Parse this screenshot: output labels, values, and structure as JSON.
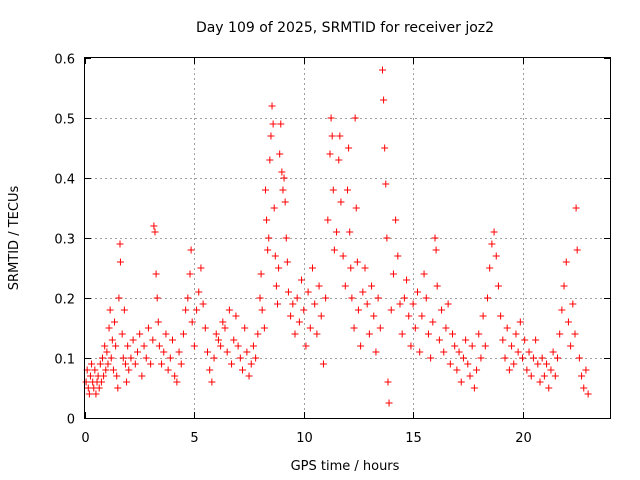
{
  "chart_data": {
    "type": "scatter",
    "title": "Day 109 of 2025, SRMTID for receiver joz2",
    "xlabel": "GPS time / hours",
    "ylabel": "SRMTID / TECUs",
    "xlim": [
      0,
      24
    ],
    "ylim": [
      0,
      0.6
    ],
    "xticks": [
      0,
      5,
      10,
      15,
      20
    ],
    "yticks": [
      0,
      0.1,
      0.2,
      0.3,
      0.4,
      0.5,
      0.6
    ],
    "xtick_labels": [
      "0",
      "5",
      "10",
      "15",
      "20"
    ],
    "ytick_labels": [
      "0",
      "0.1",
      "0.2",
      "0.3",
      "0.4",
      "0.5",
      "0.6"
    ],
    "grid": true,
    "marker": "+",
    "color": "#ff0000",
    "series": [
      {
        "name": "SRMTID",
        "points": [
          [
            0.05,
            0.06
          ],
          [
            0.1,
            0.08
          ],
          [
            0.15,
            0.05
          ],
          [
            0.2,
            0.04
          ],
          [
            0.25,
            0.07
          ],
          [
            0.3,
            0.09
          ],
          [
            0.35,
            0.06
          ],
          [
            0.4,
            0.05
          ],
          [
            0.45,
            0.08
          ],
          [
            0.5,
            0.04
          ],
          [
            0.55,
            0.06
          ],
          [
            0.6,
            0.07
          ],
          [
            0.65,
            0.05
          ],
          [
            0.7,
            0.09
          ],
          [
            0.75,
            0.06
          ],
          [
            0.8,
            0.1
          ],
          [
            0.85,
            0.07
          ],
          [
            0.9,
            0.12
          ],
          [
            0.95,
            0.08
          ],
          [
            1.0,
            0.11
          ],
          [
            1.05,
            0.09
          ],
          [
            1.1,
            0.15
          ],
          [
            1.15,
            0.18
          ],
          [
            1.2,
            0.1
          ],
          [
            1.25,
            0.13
          ],
          [
            1.3,
            0.08
          ],
          [
            1.35,
            0.16
          ],
          [
            1.4,
            0.12
          ],
          [
            1.45,
            0.07
          ],
          [
            1.5,
            0.05
          ],
          [
            1.55,
            0.2
          ],
          [
            1.6,
            0.29
          ],
          [
            1.62,
            0.26
          ],
          [
            1.7,
            0.14
          ],
          [
            1.75,
            0.1
          ],
          [
            1.8,
            0.18
          ],
          [
            1.85,
            0.09
          ],
          [
            1.9,
            0.06
          ],
          [
            1.95,
            0.12
          ],
          [
            2.0,
            0.08
          ],
          [
            2.1,
            0.1
          ],
          [
            2.2,
            0.13
          ],
          [
            2.3,
            0.09
          ],
          [
            2.4,
            0.11
          ],
          [
            2.5,
            0.14
          ],
          [
            2.6,
            0.07
          ],
          [
            2.7,
            0.12
          ],
          [
            2.8,
            0.1
          ],
          [
            2.9,
            0.15
          ],
          [
            3.0,
            0.09
          ],
          [
            3.1,
            0.13
          ],
          [
            3.15,
            0.32
          ],
          [
            3.2,
            0.31
          ],
          [
            3.25,
            0.24
          ],
          [
            3.3,
            0.2
          ],
          [
            3.35,
            0.16
          ],
          [
            3.4,
            0.12
          ],
          [
            3.5,
            0.09
          ],
          [
            3.6,
            0.11
          ],
          [
            3.7,
            0.14
          ],
          [
            3.8,
            0.08
          ],
          [
            3.9,
            0.1
          ],
          [
            4.0,
            0.13
          ],
          [
            4.1,
            0.07
          ],
          [
            4.2,
            0.06
          ],
          [
            4.3,
            0.11
          ],
          [
            4.4,
            0.09
          ],
          [
            4.5,
            0.14
          ],
          [
            4.6,
            0.18
          ],
          [
            4.7,
            0.2
          ],
          [
            4.8,
            0.24
          ],
          [
            4.85,
            0.28
          ],
          [
            4.9,
            0.16
          ],
          [
            5.0,
            0.12
          ],
          [
            5.1,
            0.18
          ],
          [
            5.2,
            0.21
          ],
          [
            5.3,
            0.25
          ],
          [
            5.4,
            0.19
          ],
          [
            5.5,
            0.15
          ],
          [
            5.6,
            0.11
          ],
          [
            5.7,
            0.08
          ],
          [
            5.8,
            0.06
          ],
          [
            5.9,
            0.1
          ],
          [
            6.0,
            0.14
          ],
          [
            6.1,
            0.13
          ],
          [
            6.2,
            0.12
          ],
          [
            6.3,
            0.16
          ],
          [
            6.4,
            0.15
          ],
          [
            6.5,
            0.11
          ],
          [
            6.6,
            0.18
          ],
          [
            6.7,
            0.09
          ],
          [
            6.8,
            0.13
          ],
          [
            6.9,
            0.17
          ],
          [
            7.0,
            0.12
          ],
          [
            7.1,
            0.1
          ],
          [
            7.2,
            0.08
          ],
          [
            7.3,
            0.15
          ],
          [
            7.4,
            0.11
          ],
          [
            7.5,
            0.07
          ],
          [
            7.6,
            0.09
          ],
          [
            7.7,
            0.12
          ],
          [
            7.8,
            0.1
          ],
          [
            7.9,
            0.14
          ],
          [
            8.0,
            0.2
          ],
          [
            8.05,
            0.24
          ],
          [
            8.1,
            0.18
          ],
          [
            8.2,
            0.15
          ],
          [
            8.25,
            0.38
          ],
          [
            8.3,
            0.33
          ],
          [
            8.35,
            0.28
          ],
          [
            8.4,
            0.3
          ],
          [
            8.45,
            0.43
          ],
          [
            8.5,
            0.47
          ],
          [
            8.55,
            0.52
          ],
          [
            8.6,
            0.49
          ],
          [
            8.65,
            0.35
          ],
          [
            8.7,
            0.27
          ],
          [
            8.75,
            0.22
          ],
          [
            8.8,
            0.19
          ],
          [
            8.85,
            0.25
          ],
          [
            8.9,
            0.44
          ],
          [
            8.95,
            0.49
          ],
          [
            9.0,
            0.41
          ],
          [
            9.05,
            0.38
          ],
          [
            9.1,
            0.4
          ],
          [
            9.15,
            0.36
          ],
          [
            9.2,
            0.3
          ],
          [
            9.25,
            0.26
          ],
          [
            9.3,
            0.21
          ],
          [
            9.4,
            0.17
          ],
          [
            9.5,
            0.19
          ],
          [
            9.6,
            0.14
          ],
          [
            9.7,
            0.2
          ],
          [
            9.8,
            0.16
          ],
          [
            9.9,
            0.23
          ],
          [
            10.0,
            0.18
          ],
          [
            10.1,
            0.12
          ],
          [
            10.2,
            0.21
          ],
          [
            10.3,
            0.15
          ],
          [
            10.4,
            0.25
          ],
          [
            10.5,
            0.19
          ],
          [
            10.6,
            0.14
          ],
          [
            10.7,
            0.22
          ],
          [
            10.8,
            0.17
          ],
          [
            10.9,
            0.09
          ],
          [
            11.0,
            0.2
          ],
          [
            11.1,
            0.33
          ],
          [
            11.2,
            0.44
          ],
          [
            11.25,
            0.5
          ],
          [
            11.3,
            0.47
          ],
          [
            11.35,
            0.38
          ],
          [
            11.4,
            0.28
          ],
          [
            11.5,
            0.31
          ],
          [
            11.6,
            0.43
          ],
          [
            11.65,
            0.47
          ],
          [
            11.7,
            0.36
          ],
          [
            11.8,
            0.27
          ],
          [
            11.9,
            0.22
          ],
          [
            12.0,
            0.38
          ],
          [
            12.05,
            0.45
          ],
          [
            12.1,
            0.31
          ],
          [
            12.15,
            0.25
          ],
          [
            12.2,
            0.2
          ],
          [
            12.3,
            0.15
          ],
          [
            12.35,
            0.5
          ],
          [
            12.4,
            0.35
          ],
          [
            12.45,
            0.26
          ],
          [
            12.5,
            0.18
          ],
          [
            12.6,
            0.12
          ],
          [
            12.7,
            0.21
          ],
          [
            12.8,
            0.25
          ],
          [
            12.9,
            0.19
          ],
          [
            13.0,
            0.14
          ],
          [
            13.1,
            0.22
          ],
          [
            13.2,
            0.17
          ],
          [
            13.3,
            0.11
          ],
          [
            13.4,
            0.2
          ],
          [
            13.5,
            0.15
          ],
          [
            13.6,
            0.58
          ],
          [
            13.65,
            0.53
          ],
          [
            13.7,
            0.45
          ],
          [
            13.75,
            0.39
          ],
          [
            13.8,
            0.3
          ],
          [
            13.85,
            0.06
          ],
          [
            13.9,
            0.025
          ],
          [
            14.0,
            0.18
          ],
          [
            14.1,
            0.24
          ],
          [
            14.2,
            0.33
          ],
          [
            14.3,
            0.27
          ],
          [
            14.4,
            0.19
          ],
          [
            14.5,
            0.14
          ],
          [
            14.6,
            0.2
          ],
          [
            14.7,
            0.23
          ],
          [
            14.8,
            0.17
          ],
          [
            14.9,
            0.12
          ],
          [
            15.0,
            0.19
          ],
          [
            15.1,
            0.15
          ],
          [
            15.2,
            0.21
          ],
          [
            15.3,
            0.11
          ],
          [
            15.4,
            0.17
          ],
          [
            15.5,
            0.24
          ],
          [
            15.6,
            0.2
          ],
          [
            15.7,
            0.14
          ],
          [
            15.8,
            0.1
          ],
          [
            15.9,
            0.16
          ],
          [
            16.0,
            0.3
          ],
          [
            16.05,
            0.28
          ],
          [
            16.1,
            0.22
          ],
          [
            16.2,
            0.13
          ],
          [
            16.3,
            0.18
          ],
          [
            16.4,
            0.11
          ],
          [
            16.5,
            0.15
          ],
          [
            16.6,
            0.19
          ],
          [
            16.7,
            0.09
          ],
          [
            16.8,
            0.14
          ],
          [
            16.9,
            0.12
          ],
          [
            17.0,
            0.08
          ],
          [
            17.1,
            0.11
          ],
          [
            17.2,
            0.06
          ],
          [
            17.3,
            0.1
          ],
          [
            17.4,
            0.13
          ],
          [
            17.5,
            0.09
          ],
          [
            17.6,
            0.07
          ],
          [
            17.7,
            0.12
          ],
          [
            17.8,
            0.05
          ],
          [
            17.9,
            0.08
          ],
          [
            18.0,
            0.14
          ],
          [
            18.1,
            0.1
          ],
          [
            18.2,
            0.17
          ],
          [
            18.3,
            0.12
          ],
          [
            18.4,
            0.2
          ],
          [
            18.5,
            0.25
          ],
          [
            18.6,
            0.29
          ],
          [
            18.7,
            0.31
          ],
          [
            18.8,
            0.27
          ],
          [
            18.9,
            0.22
          ],
          [
            19.0,
            0.17
          ],
          [
            19.1,
            0.13
          ],
          [
            19.2,
            0.1
          ],
          [
            19.3,
            0.15
          ],
          [
            19.4,
            0.08
          ],
          [
            19.5,
            0.12
          ],
          [
            19.6,
            0.09
          ],
          [
            19.7,
            0.14
          ],
          [
            19.8,
            0.11
          ],
          [
            19.9,
            0.16
          ],
          [
            20.0,
            0.1
          ],
          [
            20.1,
            0.13
          ],
          [
            20.2,
            0.08
          ],
          [
            20.3,
            0.11
          ],
          [
            20.4,
            0.07
          ],
          [
            20.5,
            0.1
          ],
          [
            20.6,
            0.13
          ],
          [
            20.7,
            0.09
          ],
          [
            20.8,
            0.06
          ],
          [
            20.9,
            0.1
          ],
          [
            21.0,
            0.07
          ],
          [
            21.1,
            0.09
          ],
          [
            21.2,
            0.05
          ],
          [
            21.3,
            0.08
          ],
          [
            21.4,
            0.11
          ],
          [
            21.5,
            0.07
          ],
          [
            21.6,
            0.1
          ],
          [
            21.7,
            0.14
          ],
          [
            21.8,
            0.18
          ],
          [
            21.9,
            0.22
          ],
          [
            22.0,
            0.26
          ],
          [
            22.1,
            0.16
          ],
          [
            22.2,
            0.12
          ],
          [
            22.3,
            0.19
          ],
          [
            22.4,
            0.14
          ],
          [
            22.45,
            0.35
          ],
          [
            22.5,
            0.28
          ],
          [
            22.6,
            0.1
          ],
          [
            22.7,
            0.07
          ],
          [
            22.8,
            0.05
          ],
          [
            22.9,
            0.08
          ],
          [
            23.0,
            0.04
          ]
        ]
      }
    ]
  }
}
